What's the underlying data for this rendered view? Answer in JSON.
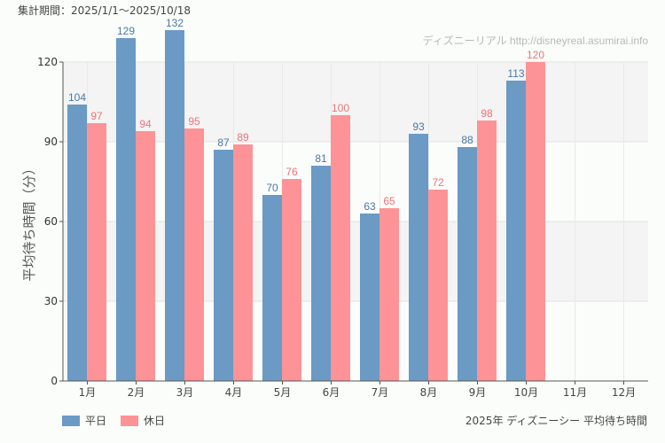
{
  "header": {
    "period": "集計期間：2025/1/1～2025/10/18"
  },
  "watermark": "ディズニーリアル http://disneyreal.asumirai.info",
  "caption": "2025年 ディズニーシー 平均待ち時間",
  "chart_data": {
    "type": "bar",
    "title": "",
    "ylabel": "平均待ち時間（分）",
    "xlabel": "",
    "ylim": [
      0,
      120
    ],
    "yticks": [
      0,
      30,
      60,
      90,
      120
    ],
    "grid": true,
    "legend_position": "bottom-left",
    "categories": [
      "1月",
      "2月",
      "3月",
      "4月",
      "5月",
      "6月",
      "7月",
      "8月",
      "9月",
      "10月",
      "11月",
      "12月"
    ],
    "series": [
      {
        "name": "平日",
        "color": "#6b9ac4",
        "label_color": "#4a78a8",
        "values": [
          104,
          129,
          132,
          87,
          70,
          81,
          63,
          93,
          88,
          113,
          null,
          null
        ]
      },
      {
        "name": "休日",
        "color": "#fd9396",
        "label_color": "#f07378",
        "values": [
          97,
          94,
          95,
          89,
          76,
          100,
          65,
          72,
          98,
          120,
          null,
          null
        ]
      }
    ]
  }
}
